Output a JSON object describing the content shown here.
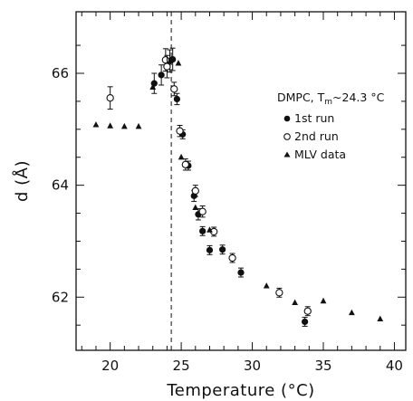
{
  "chart_data": {
    "type": "scatter",
    "xlabel": "Temperature (°C)",
    "ylabel": "d (Å)",
    "xlim": [
      17.6,
      40.8
    ],
    "ylim": [
      61.05,
      67.1
    ],
    "xticks": [
      20,
      25,
      30,
      35,
      40
    ],
    "yticks": [
      62,
      64,
      66
    ],
    "xminor": [
      18,
      19,
      21,
      22,
      23,
      24,
      26,
      27,
      28,
      29,
      31,
      32,
      33,
      34,
      36,
      37,
      38,
      39
    ],
    "yminor": [
      61.5,
      62.5,
      63,
      63.5,
      64.5,
      65,
      65.5,
      66.5
    ],
    "vline": 24.3,
    "annotation": {
      "prefix": "DMPC, T",
      "sub": "m",
      "suffix": "~24.3 °C"
    },
    "series": [
      {
        "name": "1st run",
        "marker": "filled-circle",
        "x": [
          23.1,
          23.6,
          24.2,
          24.4,
          24.7,
          25.1,
          25.5,
          25.9,
          26.2,
          26.5,
          27.0,
          27.9,
          29.2,
          33.7
        ],
        "y": [
          65.82,
          65.97,
          66.22,
          66.25,
          65.54,
          64.91,
          64.35,
          63.81,
          63.48,
          63.18,
          62.84,
          62.85,
          62.44,
          61.56
        ],
        "err": [
          0.18,
          0.18,
          0.2,
          0.2,
          0.1,
          0.08,
          0.08,
          0.1,
          0.1,
          0.08,
          0.08,
          0.08,
          0.08,
          0.08
        ]
      },
      {
        "name": "2nd run",
        "marker": "open-circle",
        "x": [
          20.0,
          23.9,
          24.0,
          24.5,
          24.9,
          25.3,
          26.0,
          26.5,
          27.3,
          28.6,
          31.9,
          33.9
        ],
        "y": [
          65.56,
          66.24,
          66.12,
          65.72,
          64.97,
          64.37,
          63.9,
          63.53,
          63.17,
          62.7,
          62.08,
          61.75
        ],
        "err": [
          0.2,
          0.2,
          0.2,
          0.12,
          0.1,
          0.1,
          0.1,
          0.1,
          0.08,
          0.08,
          0.08,
          0.08
        ]
      },
      {
        "name": "MLV data",
        "marker": "filled-triangle",
        "x": [
          19.0,
          20.0,
          21.0,
          22.0,
          23.0,
          24.8,
          25.0,
          26.0,
          27.0,
          31.0,
          33.0,
          35.0,
          37.0,
          39.0
        ],
        "y": [
          65.08,
          65.06,
          65.05,
          65.05,
          65.75,
          66.18,
          64.5,
          63.6,
          63.2,
          62.2,
          61.9,
          61.93,
          61.72,
          61.61
        ]
      }
    ]
  }
}
